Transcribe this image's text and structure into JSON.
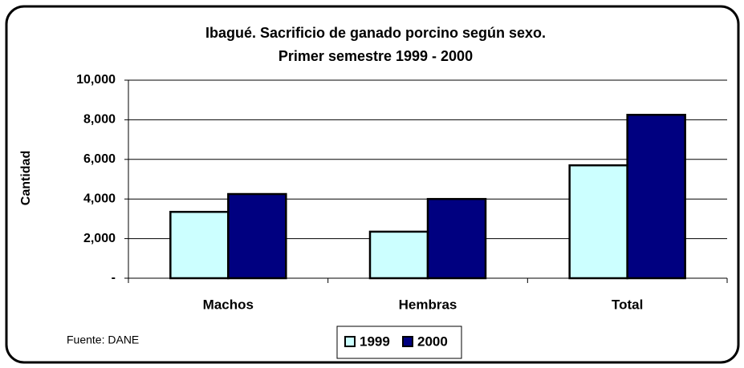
{
  "chart_data": {
    "type": "bar",
    "title": [
      "Ibagué. Sacrificio de ganado porcino según sexo.",
      "Primer semestre 1999 - 2000"
    ],
    "y_label": "Cantidad",
    "source": "Fuente: DANE",
    "categories": [
      "Machos",
      "Hembras",
      "Total"
    ],
    "series": [
      {
        "name": "1999",
        "color": "#ccffff",
        "values": [
          3350,
          2350,
          5700
        ]
      },
      {
        "name": "2000",
        "color": "#000080",
        "values": [
          4250,
          4000,
          8250
        ]
      }
    ],
    "ylim": [
      0,
      10000
    ],
    "yticks": [
      {
        "value": 0,
        "label": "-"
      },
      {
        "value": 2000,
        "label": "2,000"
      },
      {
        "value": 4000,
        "label": "4,000"
      },
      {
        "value": 6000,
        "label": "6,000"
      },
      {
        "value": 8000,
        "label": "8,000"
      },
      {
        "value": 10000,
        "label": "10,000"
      }
    ],
    "grid": true,
    "legend": "bottom"
  }
}
